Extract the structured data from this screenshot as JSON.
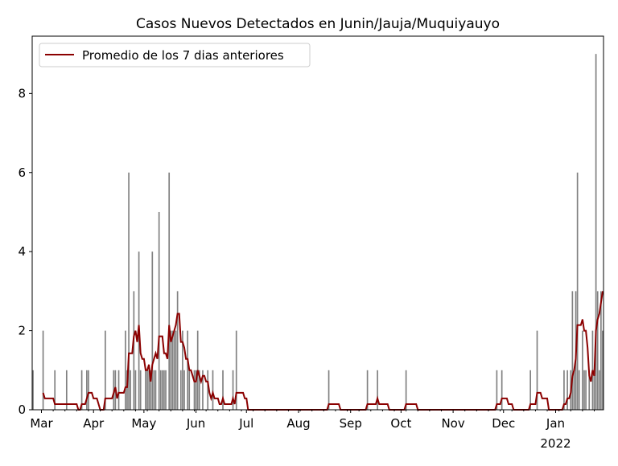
{
  "chart_data": {
    "type": "bar",
    "title": "Casos Nuevos Detectados en Junin/Jauja/Muquiyauyo",
    "xlabel": "",
    "ylabel": "",
    "xlim": [
      "2021-02-24",
      "2022-01-29"
    ],
    "ylim": [
      0,
      9.45
    ],
    "yticks": [
      0,
      2,
      4,
      6,
      8
    ],
    "xticks": [
      {
        "date": "2021-03-01",
        "label": "Mar"
      },
      {
        "date": "2021-04-01",
        "label": "Apr"
      },
      {
        "date": "2021-05-01",
        "label": "May"
      },
      {
        "date": "2021-06-01",
        "label": "Jun"
      },
      {
        "date": "2021-07-01",
        "label": "Jul"
      },
      {
        "date": "2021-08-01",
        "label": "Aug"
      },
      {
        "date": "2021-09-01",
        "label": "Sep"
      },
      {
        "date": "2021-10-01",
        "label": "Oct"
      },
      {
        "date": "2021-11-01",
        "label": "Nov"
      },
      {
        "date": "2021-12-01",
        "label": "Dec"
      },
      {
        "date": "2022-01-01",
        "label": "Jan",
        "sublabel": "2022"
      }
    ],
    "grid": false,
    "legend": {
      "placement": "upper-left",
      "entries": [
        "Promedio de los 7 dias anteriores"
      ]
    },
    "colors": {
      "bars": "#808080",
      "line": "#8b0000"
    },
    "daily_cases_nonzero": [
      [
        "2021-02-24",
        1
      ],
      [
        "2021-03-02",
        2
      ],
      [
        "2021-03-09",
        1
      ],
      [
        "2021-03-16",
        1
      ],
      [
        "2021-03-25",
        1
      ],
      [
        "2021-03-28",
        1
      ],
      [
        "2021-03-29",
        1
      ],
      [
        "2021-04-08",
        2
      ],
      [
        "2021-04-13",
        1
      ],
      [
        "2021-04-14",
        1
      ],
      [
        "2021-04-16",
        1
      ],
      [
        "2021-04-20",
        2
      ],
      [
        "2021-04-21",
        1
      ],
      [
        "2021-04-22",
        6
      ],
      [
        "2021-04-23",
        1
      ],
      [
        "2021-04-25",
        3
      ],
      [
        "2021-04-26",
        1
      ],
      [
        "2021-04-28",
        4
      ],
      [
        "2021-04-29",
        1
      ],
      [
        "2021-05-02",
        1
      ],
      [
        "2021-05-03",
        1
      ],
      [
        "2021-05-04",
        1
      ],
      [
        "2021-05-05",
        1
      ],
      [
        "2021-05-06",
        4
      ],
      [
        "2021-05-07",
        1
      ],
      [
        "2021-05-08",
        1
      ],
      [
        "2021-05-10",
        5
      ],
      [
        "2021-05-11",
        1
      ],
      [
        "2021-05-12",
        1
      ],
      [
        "2021-05-13",
        1
      ],
      [
        "2021-05-14",
        1
      ],
      [
        "2021-05-16",
        6
      ],
      [
        "2021-05-17",
        2
      ],
      [
        "2021-05-18",
        2
      ],
      [
        "2021-05-19",
        2
      ],
      [
        "2021-05-20",
        2
      ],
      [
        "2021-05-21",
        3
      ],
      [
        "2021-05-23",
        1
      ],
      [
        "2021-05-24",
        2
      ],
      [
        "2021-05-25",
        1
      ],
      [
        "2021-05-27",
        2
      ],
      [
        "2021-05-28",
        1
      ],
      [
        "2021-05-31",
        1
      ],
      [
        "2021-06-01",
        1
      ],
      [
        "2021-06-02",
        2
      ],
      [
        "2021-06-03",
        1
      ],
      [
        "2021-06-05",
        1
      ],
      [
        "2021-06-08",
        1
      ],
      [
        "2021-06-11",
        1
      ],
      [
        "2021-06-17",
        1
      ],
      [
        "2021-06-23",
        1
      ],
      [
        "2021-06-25",
        2
      ],
      [
        "2021-08-19",
        1
      ],
      [
        "2021-09-11",
        1
      ],
      [
        "2021-09-17",
        1
      ],
      [
        "2021-10-04",
        1
      ],
      [
        "2021-11-27",
        1
      ],
      [
        "2021-11-30",
        1
      ],
      [
        "2021-12-17",
        1
      ],
      [
        "2021-12-21",
        2
      ],
      [
        "2022-01-06",
        1
      ],
      [
        "2022-01-08",
        1
      ],
      [
        "2022-01-10",
        1
      ],
      [
        "2022-01-11",
        3
      ],
      [
        "2022-01-12",
        1
      ],
      [
        "2022-01-13",
        3
      ],
      [
        "2022-01-14",
        6
      ],
      [
        "2022-01-15",
        1
      ],
      [
        "2022-01-17",
        2
      ],
      [
        "2022-01-18",
        1
      ],
      [
        "2022-01-19",
        1
      ],
      [
        "2022-01-21",
        1
      ],
      [
        "2022-01-23",
        2
      ],
      [
        "2022-01-24",
        1
      ],
      [
        "2022-01-25",
        9
      ],
      [
        "2022-01-26",
        3
      ],
      [
        "2022-01-27",
        1
      ],
      [
        "2022-01-28",
        3
      ],
      [
        "2022-01-29",
        2
      ]
    ],
    "series": [
      {
        "name": "Promedio de los 7 dias anteriores",
        "kind": "line",
        "rolling_mean_days": 7
      }
    ]
  }
}
